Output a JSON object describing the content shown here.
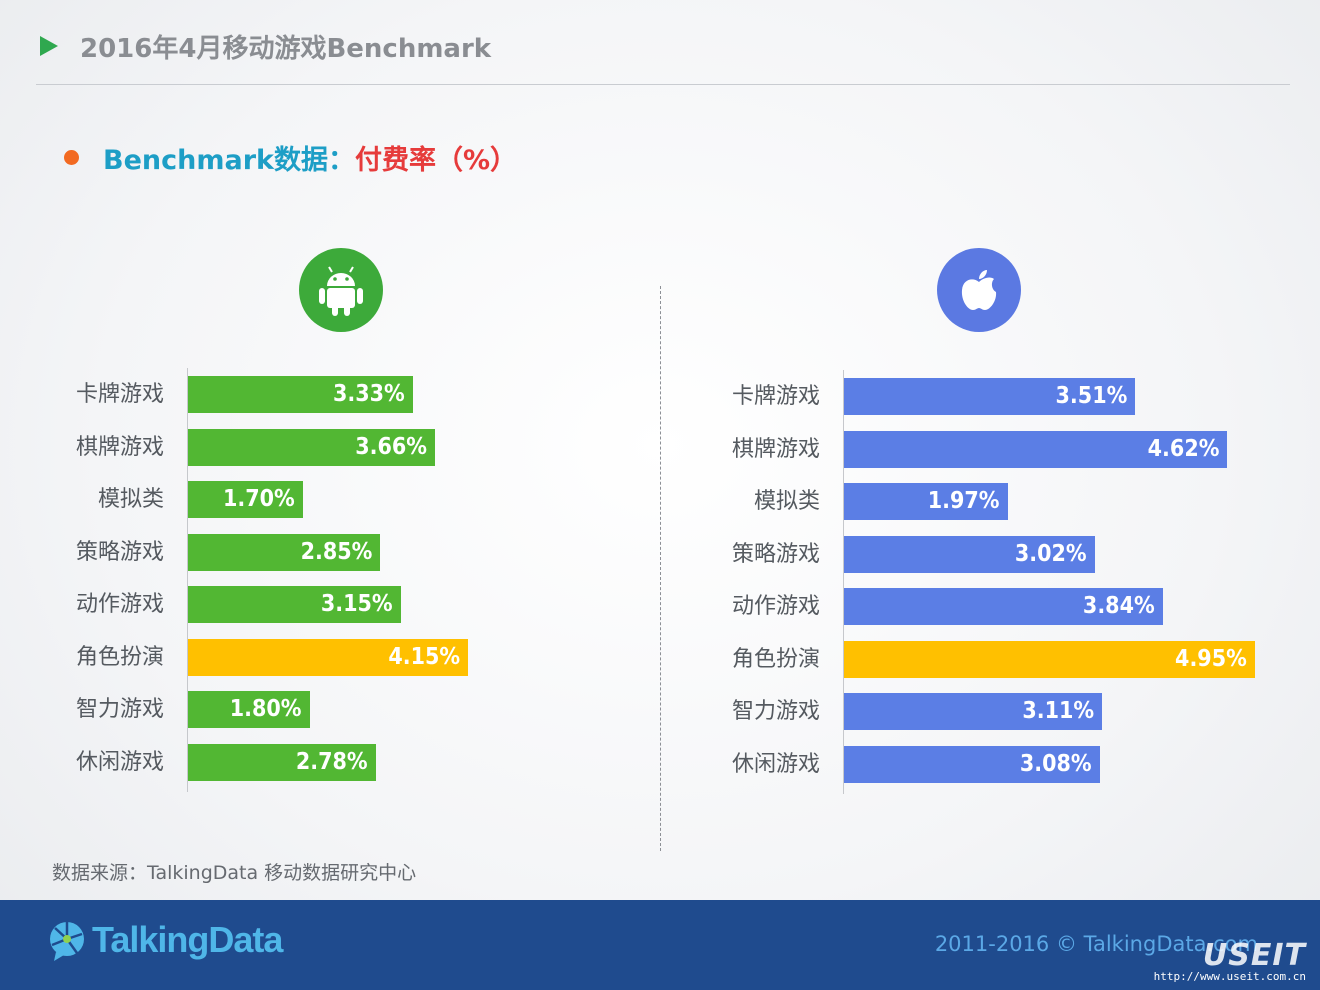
{
  "slide": {
    "title": "2016年4月移动游戏Benchmark"
  },
  "heading": {
    "lead": "Benchmark数据：",
    "metric": "付费率（%）"
  },
  "platforms": [
    {
      "name": "android",
      "icon": "android-icon"
    },
    {
      "name": "ios",
      "icon": "apple-icon"
    }
  ],
  "chart_data": [
    {
      "type": "bar",
      "orientation": "horizontal",
      "categories": [
        "卡牌游戏",
        "棋牌游戏",
        "模拟类",
        "策略游戏",
        "动作游戏",
        "角色扮演",
        "智力游戏",
        "休闲游戏"
      ],
      "values": [
        3.33,
        3.66,
        1.7,
        2.85,
        3.15,
        4.15,
        1.8,
        2.78
      ],
      "value_labels": [
        "3.33%",
        "3.66%",
        "1.70%",
        "2.85%",
        "3.15%",
        "4.15%",
        "1.80%",
        "2.78%"
      ],
      "xlim": [
        0,
        5
      ],
      "bar_color": "#52b733",
      "highlight_color": "#ffc000",
      "highlight_index": 5
    },
    {
      "type": "bar",
      "orientation": "horizontal",
      "categories": [
        "卡牌游戏",
        "棋牌游戏",
        "模拟类",
        "策略游戏",
        "动作游戏",
        "角色扮演",
        "智力游戏",
        "休闲游戏"
      ],
      "values": [
        3.51,
        4.62,
        1.97,
        3.02,
        3.84,
        4.95,
        3.11,
        3.08
      ],
      "value_labels": [
        "3.51%",
        "4.62%",
        "1.97%",
        "3.02%",
        "3.84%",
        "4.95%",
        "3.11%",
        "3.08%"
      ],
      "xlim": [
        0,
        5
      ],
      "bar_color": "#5b7ee5",
      "highlight_color": "#ffc000",
      "highlight_index": 5
    }
  ],
  "source": "数据来源：TalkingData 移动数据研究中心",
  "footer": {
    "brand": "TalkingData",
    "copyright": "2011-2016 © TalkingData.com",
    "watermark": "USEIT",
    "watermark_url": "http://www.useit.com.cn"
  }
}
